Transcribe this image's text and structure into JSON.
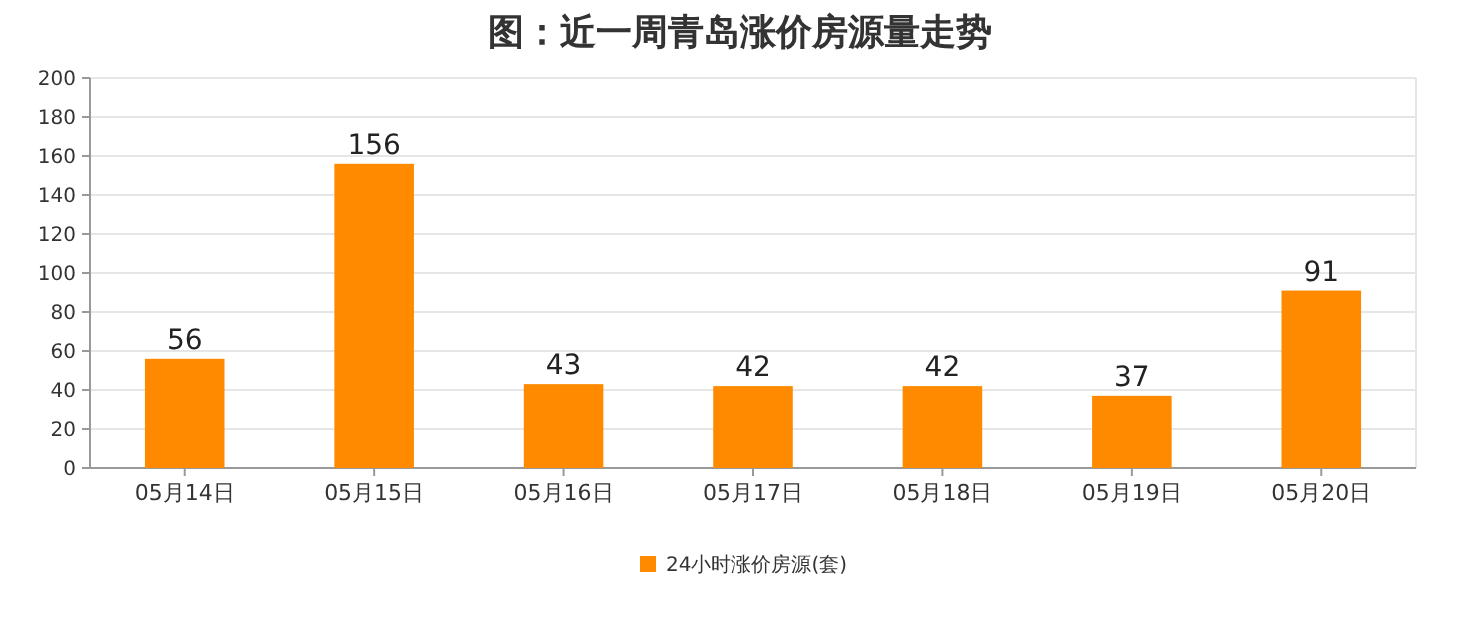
{
  "chart_data": {
    "type": "bar",
    "title": "图：近一周青岛涨价房源量走势",
    "categories": [
      "05月14日",
      "05月15日",
      "05月16日",
      "05月17日",
      "05月18日",
      "05月19日",
      "05月20日"
    ],
    "series": [
      {
        "name": "24小时涨价房源(套)",
        "color": "#ff8a00",
        "values": [
          56,
          156,
          43,
          42,
          42,
          37,
          91
        ]
      }
    ],
    "ylim": [
      0,
      200
    ],
    "yticks": [
      0,
      20,
      40,
      60,
      80,
      100,
      120,
      140,
      160,
      180,
      200
    ],
    "grid": "y",
    "data_labels": true,
    "legend": "bottom"
  }
}
